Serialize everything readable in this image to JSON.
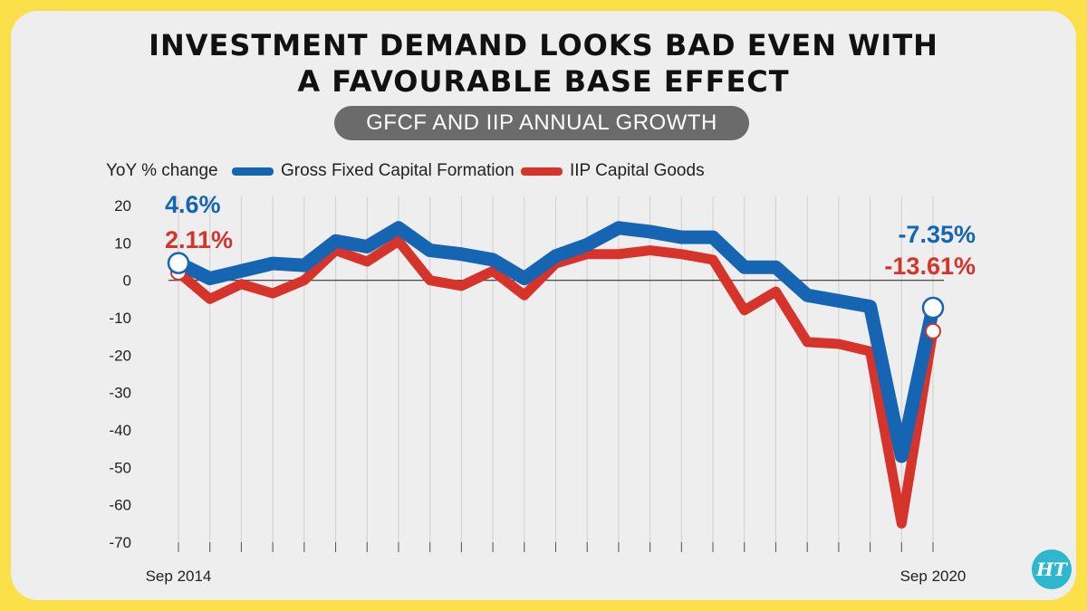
{
  "title_line1": "INVESTMENT DEMAND LOOKS BAD EVEN WITH",
  "title_line2": "A FAVOURABLE BASE EFFECT",
  "subtitle": "GFCF AND IIP ANNUAL GROWTH",
  "logo_text": "HT",
  "colors": {
    "gfcf": "#1565b3",
    "iip": "#d6332b",
    "background": "#fbe04a",
    "card": "#eeeeee"
  },
  "chart_data": {
    "type": "line",
    "ylabel": "YoY % change",
    "ylim": [
      -70,
      20
    ],
    "yticks": [
      "20",
      "10",
      "0",
      "-10",
      "-20",
      "-30",
      "-40",
      "-50",
      "-60",
      "-70"
    ],
    "x_tick_labels": [
      "Sep 2014",
      "Sep 2020"
    ],
    "grid": "vertical",
    "legend_position": "top",
    "series": [
      {
        "name": "Gross Fixed Capital Formation",
        "color": "#1565b3",
        "values": [
          4.6,
          0.5,
          2.5,
          4.5,
          4,
          10.5,
          9,
          14,
          8,
          7,
          5.5,
          0.5,
          6.5,
          9.5,
          14,
          13,
          11.5,
          11.5,
          3.5,
          3.5,
          -4,
          -5.5,
          -7,
          -47,
          -7.35
        ]
      },
      {
        "name": "IIP Capital Goods",
        "color": "#d6332b",
        "values": [
          2.11,
          -5,
          -1,
          -3.5,
          0,
          8,
          5,
          10.5,
          0,
          -1.5,
          2.5,
          -4,
          4.5,
          7,
          7,
          8,
          7,
          5.5,
          -8,
          -3,
          -16.5,
          -17,
          -19,
          -65,
          -13.61
        ]
      }
    ],
    "annotations": [
      {
        "text": "4.6%",
        "series": 0,
        "index": 0
      },
      {
        "text": "2.11%",
        "series": 1,
        "index": 0
      },
      {
        "text": "-7.35%",
        "series": 0,
        "index": 24
      },
      {
        "text": "-13.61%",
        "series": 1,
        "index": 24
      }
    ]
  }
}
